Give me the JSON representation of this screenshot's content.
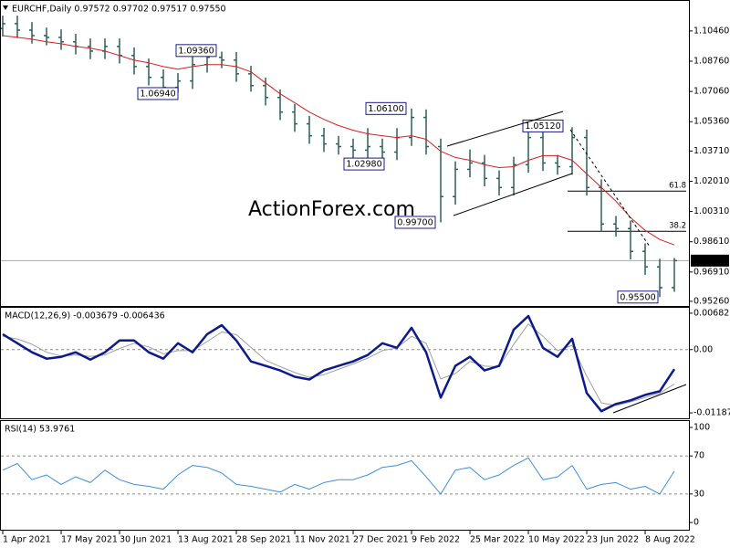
{
  "chart_data": [
    {
      "type": "ohlc",
      "title": "EURCHF,Daily  0.97572 0.97702 0.97517 0.97550",
      "watermark": "ActionForex.com",
      "color": "#2e5e5a",
      "x": [
        0,
        8,
        16,
        24,
        32,
        40,
        48,
        56,
        64,
        72,
        80,
        88,
        96,
        104,
        112,
        120,
        128,
        136,
        144,
        152,
        160,
        168,
        176,
        184,
        192,
        200,
        208,
        216,
        224,
        232,
        240,
        248,
        256,
        264,
        272,
        280,
        288,
        296,
        304,
        312,
        320,
        328,
        336,
        344,
        352,
        360,
        368
      ],
      "open": [
        1.106,
        1.1087,
        1.1051,
        1.102,
        1.101,
        1.0985,
        1.0959,
        1.0933,
        1.0959,
        1.0908,
        1.0846,
        1.0785,
        1.0729,
        1.0765,
        1.0857,
        1.0898,
        1.0882,
        1.0805,
        1.0739,
        1.0672,
        1.059,
        1.0524,
        1.0457,
        1.0411,
        1.0396,
        1.0376,
        1.0396,
        1.0365,
        1.0447,
        1.056,
        1.0396,
        1.0115,
        1.0268,
        1.0304,
        1.0217,
        1.0166,
        1.0294,
        1.0447,
        1.0304,
        1.0283,
        1.0447,
        1.0166,
        0.9961,
        0.9935,
        0.9807,
        0.972,
        0.9603
      ],
      "high": [
        1.1132,
        1.1132,
        1.1096,
        1.1065,
        1.1055,
        1.103,
        1.1004,
        1.1004,
        1.1004,
        1.0953,
        1.0891,
        1.083,
        1.081,
        1.0902,
        1.0936,
        1.093,
        1.0927,
        1.085,
        1.0784,
        1.0717,
        1.0635,
        1.0569,
        1.0502,
        1.0456,
        1.0441,
        1.05,
        1.0441,
        1.05,
        1.061,
        1.0605,
        1.0441,
        1.0313,
        1.038,
        1.0349,
        1.0262,
        1.0339,
        1.0512,
        1.0492,
        1.0349,
        1.0505,
        1.0492,
        1.0211,
        1.0006,
        0.998,
        0.9852,
        0.9765,
        0.977
      ],
      "low": [
        1.1015,
        1.1006,
        1.0975,
        1.0965,
        1.094,
        1.0914,
        1.0888,
        1.0888,
        1.0863,
        1.0801,
        1.074,
        1.0694,
        1.07,
        1.072,
        1.0812,
        1.0837,
        1.076,
        1.0705,
        1.0627,
        1.0545,
        1.0479,
        1.0412,
        1.0366,
        1.0351,
        1.0331,
        1.0331,
        1.0298,
        1.032,
        1.04,
        1.0351,
        0.997,
        1.007,
        1.0223,
        1.0172,
        1.0121,
        1.0121,
        1.0249,
        1.0259,
        1.0238,
        1.0238,
        1.0121,
        0.9916,
        0.989,
        0.9762,
        0.9675,
        0.955,
        0.958
      ],
      "close": [
        1.1087,
        1.1051,
        1.102,
        1.101,
        1.0985,
        1.0959,
        1.0933,
        1.0959,
        1.0908,
        1.0846,
        1.0785,
        1.0729,
        1.0765,
        1.0857,
        1.0898,
        1.0882,
        1.0805,
        1.0739,
        1.0672,
        1.059,
        1.0524,
        1.0457,
        1.0411,
        1.0396,
        1.0376,
        1.0396,
        1.0365,
        1.0447,
        1.056,
        1.0396,
        1.0115,
        1.0268,
        1.0304,
        1.0217,
        1.0166,
        1.0294,
        1.0447,
        1.0304,
        1.0283,
        1.0447,
        1.0166,
        0.9961,
        0.9935,
        0.9807,
        0.972,
        0.9603,
        0.9755
      ],
      "moving_average": {
        "color": "#d42020",
        "values": [
          1.102,
          1.101,
          1.1,
          1.0985,
          1.0974,
          1.0959,
          1.0949,
          1.0933,
          1.0908,
          1.0882,
          1.0867,
          1.0846,
          1.0831,
          1.0846,
          1.0857,
          1.0857,
          1.0846,
          1.0816,
          1.0754,
          1.0693,
          1.0642,
          1.059,
          1.0549,
          1.0514,
          1.0488,
          1.0468,
          1.0457,
          1.0447,
          1.0457,
          1.0437,
          1.037,
          1.0335,
          1.0319,
          1.0294,
          1.0278,
          1.0283,
          1.0319,
          1.0345,
          1.0345,
          1.0319,
          1.0243,
          1.0166,
          1.0089,
          0.9997,
          0.9925,
          0.9874,
          0.9843
        ]
      },
      "annotations": [
        {
          "label": "1.09360",
          "value": 1.0936,
          "x": 118
        },
        {
          "label": "1.06940",
          "value": 1.0694,
          "x": 97
        },
        {
          "label": "1.06100",
          "value": 1.061,
          "x": 222
        },
        {
          "label": "1.02980",
          "value": 1.0298,
          "x": 210
        },
        {
          "label": "0.99700",
          "value": 0.997,
          "x": 238
        },
        {
          "label": "1.05120",
          "value": 1.0512,
          "x": 308
        },
        {
          "label": "0.95500",
          "value": 0.955,
          "x": 360
        }
      ],
      "fib_levels": [
        {
          "ratio": 61.8,
          "price": 1.0146
        },
        {
          "ratio": 38.2,
          "price": 0.992
        }
      ],
      "last_price": {
        "value": 0.9755,
        "label": "0.97550"
      },
      "xlim": [
        0,
        376
      ],
      "ylim": [
        0.95,
        1.1215
      ],
      "yticks": [
        {
          "value": 1.1046,
          "label": "1.10460"
        },
        {
          "value": 1.0876,
          "label": "1.08760"
        },
        {
          "value": 1.0706,
          "label": "1.07060"
        },
        {
          "value": 1.0536,
          "label": "1.05360"
        },
        {
          "value": 1.0371,
          "label": "1.03710"
        },
        {
          "value": 1.0201,
          "label": "1.02010"
        },
        {
          "value": 1.0031,
          "label": "1.00310"
        },
        {
          "value": 0.9861,
          "label": "0.98610"
        },
        {
          "value": 0.9691,
          "label": "0.96910"
        },
        {
          "value": 0.9526,
          "label": "0.95260"
        }
      ]
    },
    {
      "type": "line",
      "title": "MACD(12,26,9) -0.003679 -0.006436",
      "x": [
        0,
        8,
        16,
        24,
        32,
        40,
        48,
        56,
        64,
        72,
        80,
        88,
        96,
        104,
        112,
        120,
        128,
        136,
        144,
        152,
        160,
        168,
        176,
        184,
        192,
        200,
        208,
        216,
        224,
        232,
        240,
        248,
        256,
        264,
        272,
        280,
        288,
        296,
        304,
        312,
        320,
        328,
        336,
        344,
        352,
        360,
        368
      ],
      "series": [
        {
          "color": "#a0a0a0",
          "values": [
            0.0025,
            0.002,
            0.001,
            -0.0005,
            -0.0012,
            -0.001,
            -0.0013,
            -0.001,
            0.0002,
            0.0012,
            0.0005,
            -0.0008,
            -0.0002,
            -0.0002,
            0.0015,
            0.0033,
            0.0028,
            0.0004,
            -0.002,
            -0.0032,
            -0.0043,
            -0.0052,
            -0.0047,
            -0.0037,
            -0.0027,
            -0.0016,
            -0.0002,
            0.0003,
            0.0025,
            0.0012,
            -0.0055,
            -0.0045,
            -0.0022,
            -0.0031,
            -0.0032,
            0.001,
            0.0048,
            0.0025,
            -0.0002,
            0.0008,
            -0.005,
            -0.01,
            -0.0105,
            -0.0098,
            -0.009,
            -0.0082,
            -0.00644
          ]
        },
        {
          "color": "#0b1a8c",
          "values": [
            0.00289,
            0.00119,
            -0.00051,
            -0.0017,
            -0.00136,
            -0.00051,
            -0.00187,
            -0.00051,
            0.0017,
            0.0017,
            -0.00051,
            -0.0017,
            0.00119,
            -0.00051,
            0.00289,
            0.00459,
            0.0017,
            -0.00221,
            -0.00306,
            -0.00391,
            -0.0051,
            -0.00561,
            -0.00391,
            -0.00306,
            -0.00221,
            -0.00102,
            0.00119,
            0.00034,
            0.00408,
            -0.00051,
            -0.00901,
            -0.00306,
            -0.00136,
            -0.00391,
            -0.00306,
            0.00374,
            0.00629,
            0.00034,
            -0.00136,
            0.00204,
            -0.00816,
            -0.01156,
            -0.0102,
            -0.00952,
            -0.0085,
            -0.00782,
            -0.00368
          ]
        }
      ],
      "levels": [
        0
      ],
      "xlim": [
        0,
        376
      ],
      "ylim": [
        -0.01289,
        0.00784
      ],
      "yticks": [
        0.006823,
        {
          "value": 0,
          "label": "0.00"
        },
        -0.011874
      ]
    },
    {
      "type": "line",
      "title": "RSI(14) 53.9761",
      "x": [
        0,
        8,
        16,
        24,
        32,
        40,
        48,
        56,
        64,
        72,
        80,
        88,
        96,
        104,
        112,
        120,
        128,
        136,
        144,
        152,
        160,
        168,
        176,
        184,
        192,
        200,
        208,
        216,
        224,
        232,
        240,
        248,
        256,
        264,
        272,
        280,
        288,
        296,
        304,
        312,
        320,
        328,
        336,
        344,
        352,
        360,
        368
      ],
      "series": [
        {
          "color": "#3d8fd8",
          "values": [
            55,
            62,
            45,
            50,
            40,
            48,
            42,
            55,
            45,
            40,
            38,
            35,
            50,
            60,
            58,
            52,
            40,
            38,
            35,
            32,
            40,
            35,
            42,
            45,
            45,
            50,
            58,
            60,
            65,
            48,
            30,
            55,
            58,
            45,
            50,
            60,
            68,
            45,
            48,
            60,
            35,
            40,
            42,
            35,
            38,
            30,
            53.98
          ]
        }
      ],
      "levels": [
        70,
        30
      ],
      "xlim": [
        0,
        376
      ],
      "ylim": [
        -7.6,
        106.7
      ],
      "yticks": [
        100,
        70,
        30,
        0
      ],
      "xticks": [
        {
          "value": 0,
          "label": "1 Apr 2021"
        },
        {
          "value": 32,
          "label": "17 May 2021"
        },
        {
          "value": 64,
          "label": "30 Jun 2021"
        },
        {
          "value": 96,
          "label": "13 Aug 2021"
        },
        {
          "value": 128,
          "label": "28 Sep 2021"
        },
        {
          "value": 160,
          "label": "11 Nov 2021"
        },
        {
          "value": 192,
          "label": "27 Dec 2021"
        },
        {
          "value": 224,
          "label": "9 Feb 2022"
        },
        {
          "value": 256,
          "label": "25 Mar 2022"
        },
        {
          "value": 288,
          "label": "10 May 2022"
        },
        {
          "value": 320,
          "label": "23 Jun 2022"
        },
        {
          "value": 352,
          "label": "8 Aug 2022"
        }
      ]
    }
  ]
}
